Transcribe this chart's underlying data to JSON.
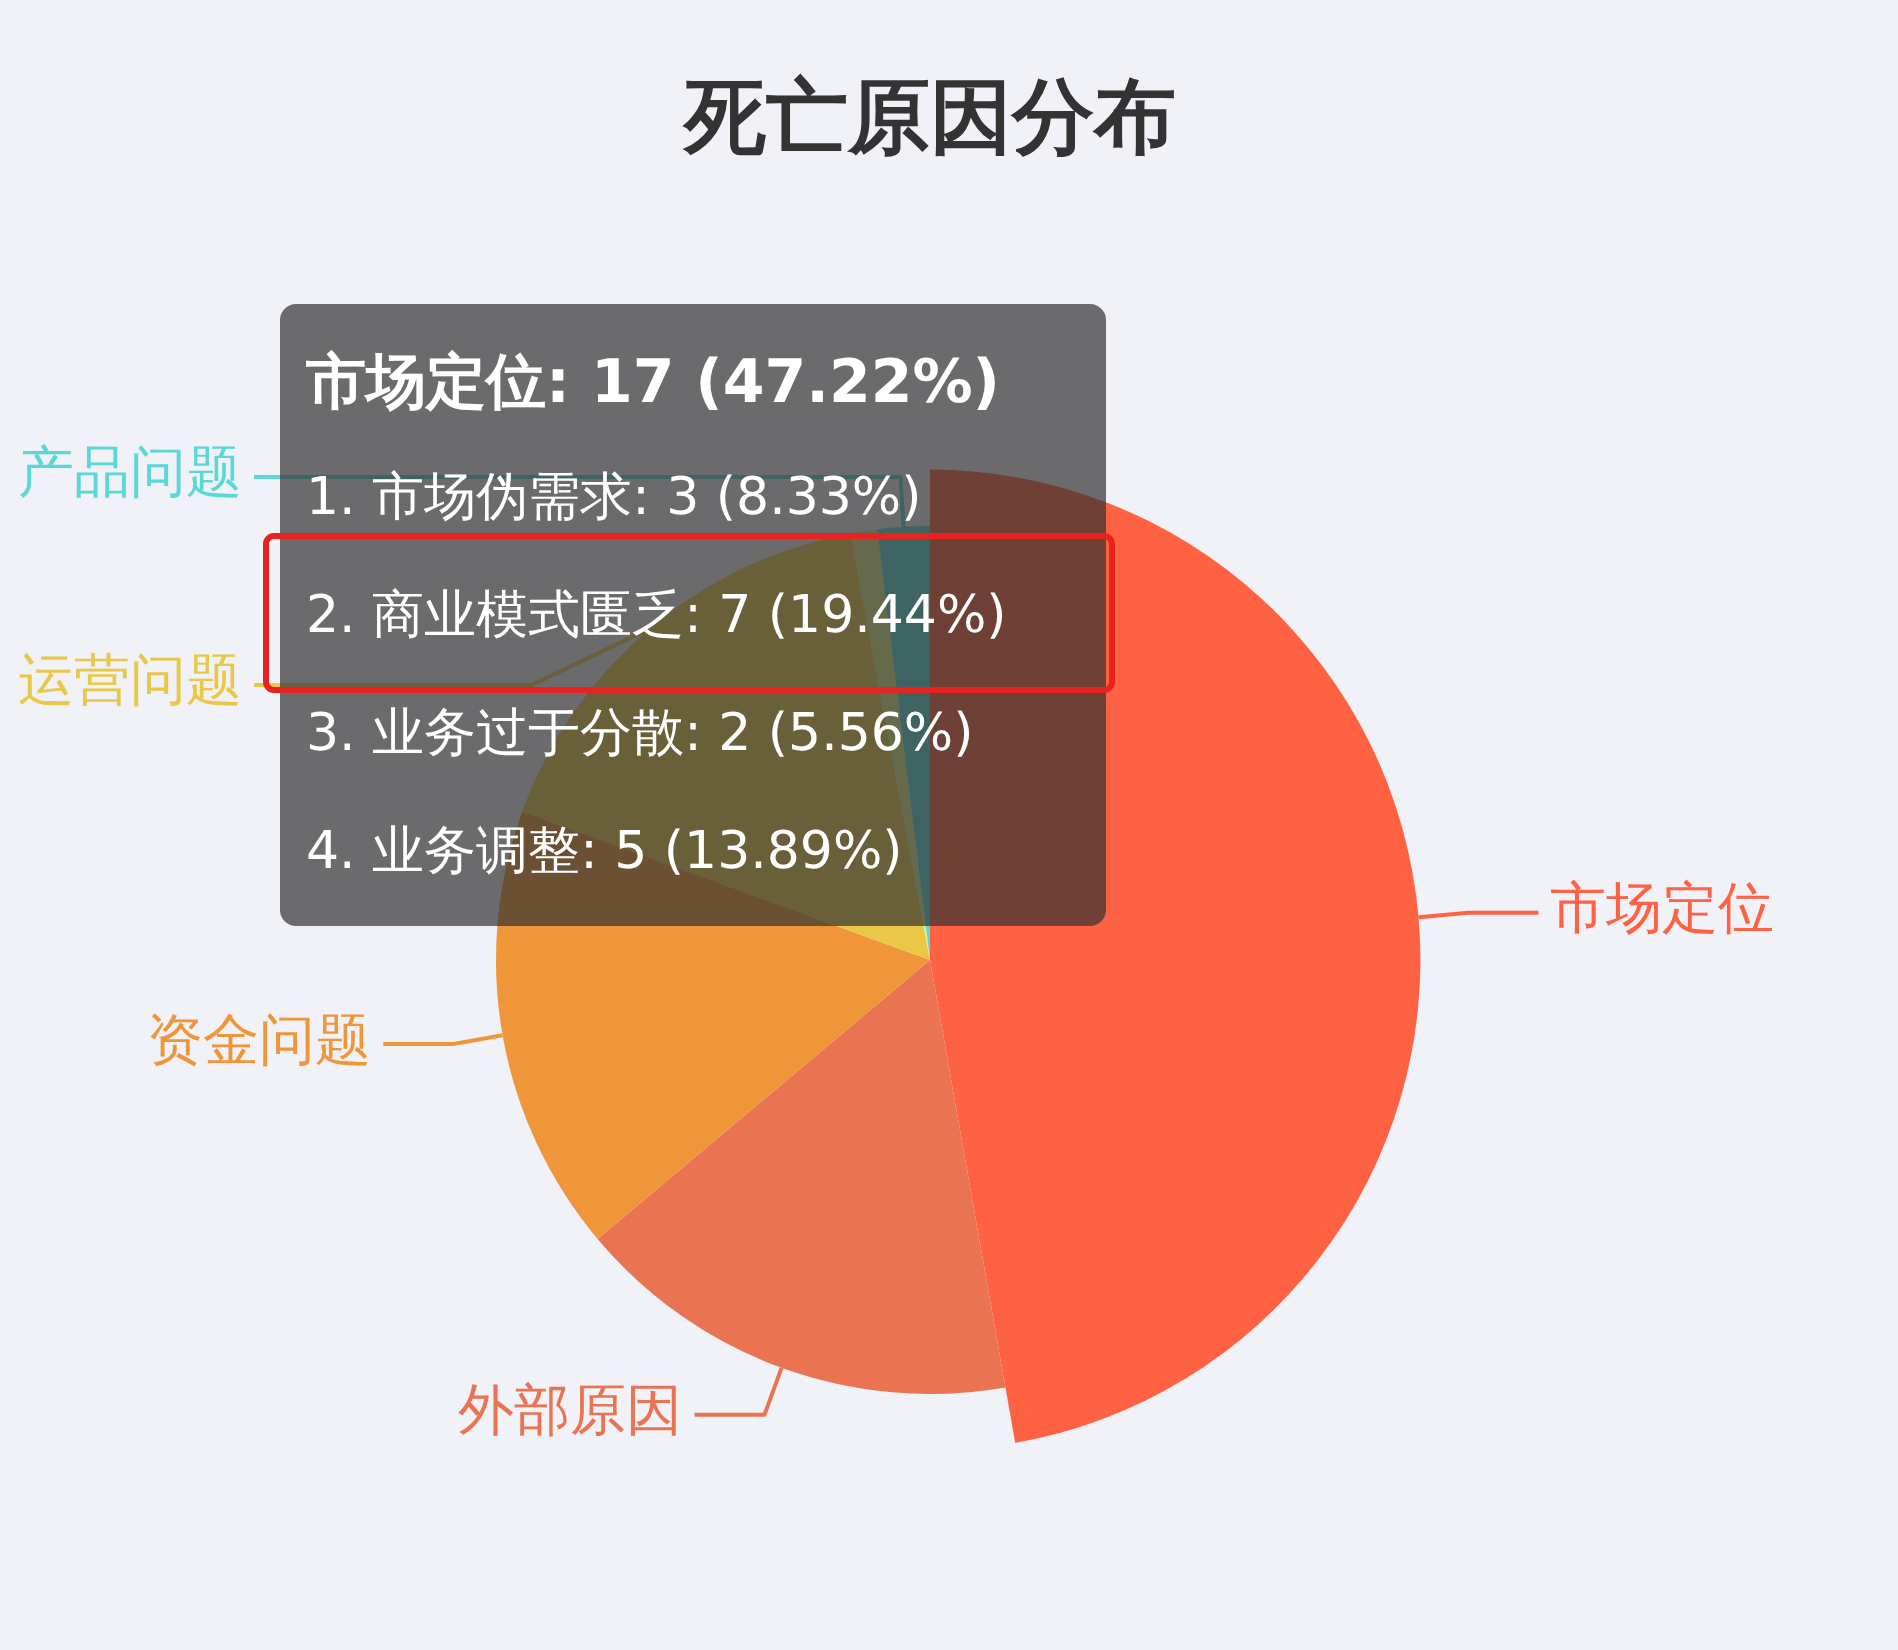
{
  "chart_data": {
    "type": "pie",
    "title": "死亡原因分布",
    "categories": [
      "市场定位",
      "外部原因",
      "资金问题",
      "运营问题",
      null,
      "产品问题"
    ],
    "values": [
      47.22,
      16.67,
      16.67,
      16.5,
      1.0,
      1.94
    ],
    "colors": [
      "#ff6242",
      "#ea7352",
      "#f0963a",
      "#e9c848",
      "#e2ee8c",
      "#5ad8d8"
    ],
    "annotations": [
      {
        "text": "市场定位: 17 (47.22%)",
        "x": "市场定位"
      },
      "1. 市场伪需求: 3 (8.33%)",
      "2. 商业模式匮乏: 7 (19.44%)",
      "3. 业务过于分散: 2 (5.56%)",
      "4. 业务调整: 5 (13.89%)"
    ]
  }
}
